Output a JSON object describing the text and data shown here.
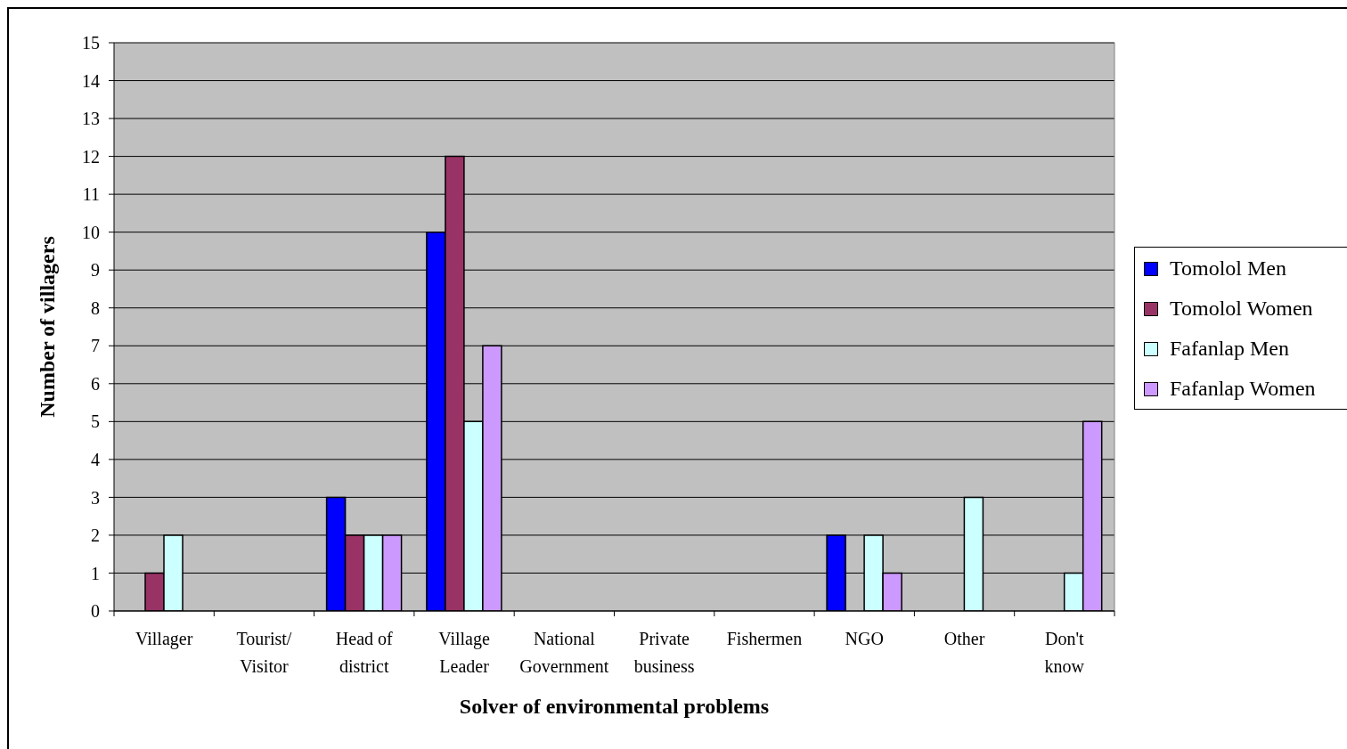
{
  "chart_data": {
    "type": "bar",
    "xlabel": "Solver of environmental problems",
    "ylabel": "Number of villagers",
    "categories": [
      "Villager",
      "Tourist/\nVisitor",
      "Head of\ndistrict",
      "Village\nLeader",
      "National\nGovernment",
      "Private\nbusiness",
      "Fishermen",
      "NGO",
      "Other",
      "Don't\nknow"
    ],
    "series": [
      {
        "name": "Tomolol Men",
        "color": "#0000ff",
        "values": [
          0,
          0,
          3,
          10,
          0,
          0,
          0,
          2,
          0,
          0
        ]
      },
      {
        "name": "Tomolol Women",
        "color": "#993366",
        "values": [
          1,
          0,
          2,
          12,
          0,
          0,
          0,
          0,
          0,
          0
        ]
      },
      {
        "name": "Fafanlap Men",
        "color": "#ccffff",
        "values": [
          2,
          0,
          2,
          5,
          0,
          0,
          0,
          2,
          3,
          1
        ]
      },
      {
        "name": "Fafanlap Women",
        "color": "#cc99ff",
        "values": [
          0,
          0,
          2,
          7,
          0,
          0,
          0,
          1,
          0,
          5
        ]
      }
    ],
    "ylim": [
      0,
      15
    ],
    "yticks": [
      0,
      1,
      2,
      3,
      4,
      5,
      6,
      7,
      8,
      9,
      10,
      11,
      12,
      13,
      14,
      15
    ],
    "grid": "y",
    "legend": "right"
  }
}
